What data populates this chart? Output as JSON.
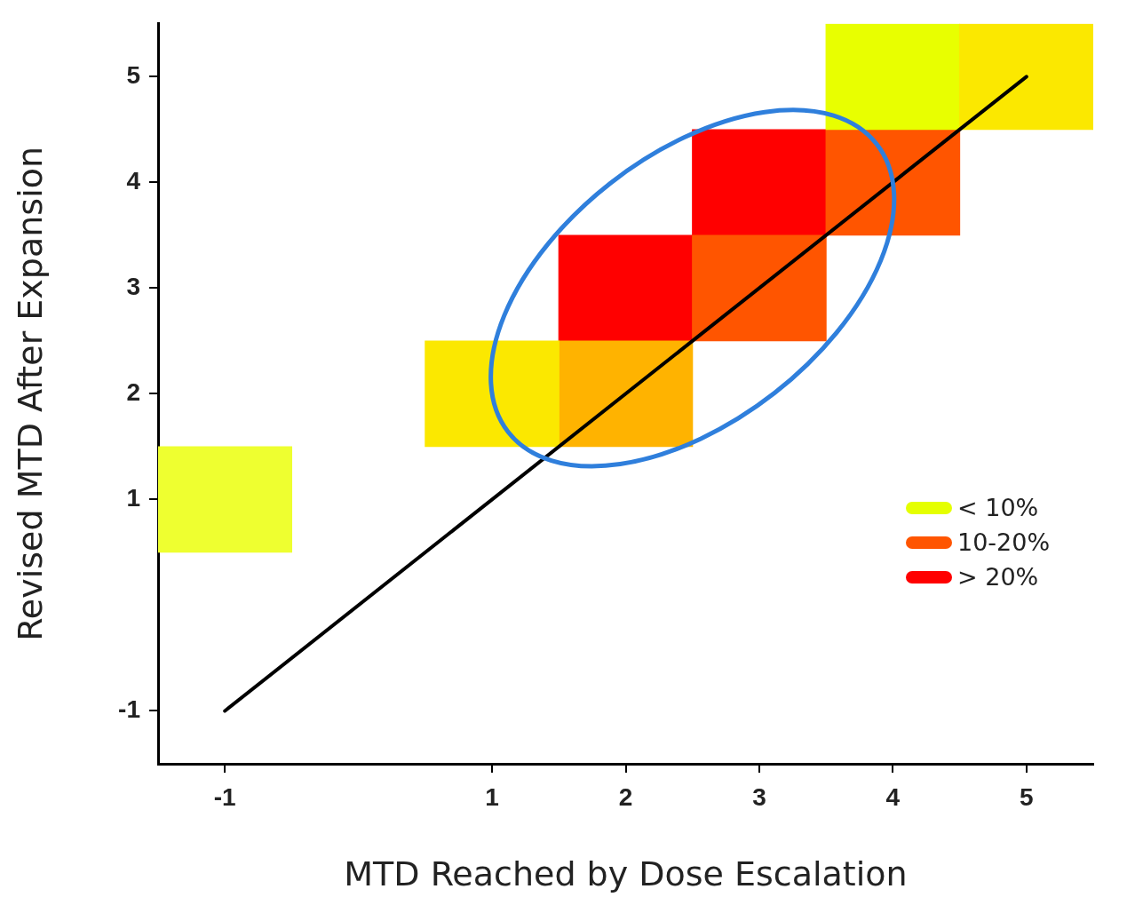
{
  "chart_data": {
    "type": "bar",
    "xlabel": "MTD Reached by Dose Escalation",
    "ylabel": "Revised MTD After Expansion",
    "xlim": [
      -1.5,
      5.5
    ],
    "xticks": [
      -1,
      1,
      2,
      3,
      4,
      5
    ],
    "ylim": [
      -1.5,
      5.5
    ],
    "yticks": [
      -1,
      1,
      2,
      3,
      4,
      5
    ],
    "series": [
      {
        "name": "< 10%",
        "color": "#e5ff00",
        "x": [
          -1,
          1,
          4,
          5
        ],
        "base": [
          0.5,
          1.5,
          4.5,
          4.5
        ],
        "values": [
          1,
          1,
          1,
          1
        ],
        "colors": [
          "#eeff30",
          "#fbe800",
          "#e8ff00",
          "#fbe800"
        ]
      },
      {
        "name": "10-20%",
        "color": "#ff5500",
        "x": [
          2,
          3,
          4
        ],
        "base": [
          1.5,
          2.5,
          3.5
        ],
        "values": [
          1,
          1,
          1
        ],
        "colors": [
          "#ffb300",
          "#ff5500",
          "#ff5500"
        ]
      },
      {
        "name": "> 20%",
        "color": "#ff0000",
        "x": [
          2,
          3
        ],
        "base": [
          2.5,
          3.5
        ],
        "values": [
          1,
          1
        ],
        "colors": [
          "#ff0000",
          "#ff0000"
        ]
      },
      {
        "type": "line",
        "x": [
          -1,
          5
        ],
        "values": [
          -1,
          5
        ],
        "color": "#000000"
      }
    ],
    "legend": "right",
    "grid": false
  }
}
